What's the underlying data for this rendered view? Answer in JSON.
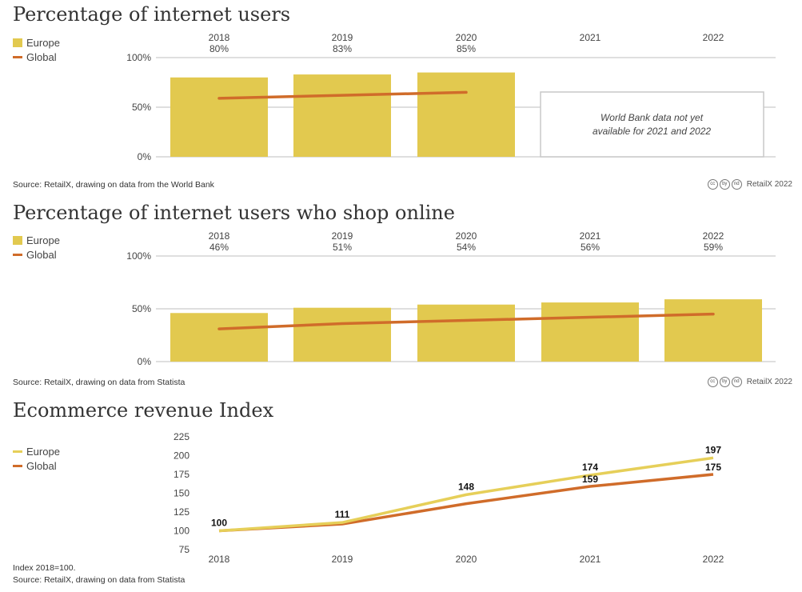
{
  "colors": {
    "europe": "#e2c94f",
    "global": "#d06c2a",
    "europe_line": "#e6cf59",
    "grid": "#cccccc"
  },
  "chart_data": [
    {
      "type": "bar",
      "title": "Percentage of internet users",
      "categories": [
        "2018",
        "2019",
        "2020",
        "2021",
        "2022"
      ],
      "value_labels": [
        "80%",
        "83%",
        "85%",
        "",
        ""
      ],
      "series": [
        {
          "name": "Europe",
          "kind": "bar",
          "values": [
            80,
            83,
            85,
            null,
            null
          ]
        },
        {
          "name": "Global",
          "kind": "line",
          "values": [
            59,
            62,
            65,
            null,
            null
          ]
        }
      ],
      "yticks": [
        "100%",
        "50%",
        "0%"
      ],
      "ylim": [
        0,
        100
      ],
      "annotation": "World Bank data not yet available for 2021 and 2022",
      "source": "Source: RetailX, drawing on data from the World Bank"
    },
    {
      "type": "bar",
      "title": "Percentage of internet users who shop online",
      "categories": [
        "2018",
        "2019",
        "2020",
        "2021",
        "2022"
      ],
      "value_labels": [
        "46%",
        "51%",
        "54%",
        "56%",
        "59%"
      ],
      "series": [
        {
          "name": "Europe",
          "kind": "bar",
          "values": [
            46,
            51,
            54,
            56,
            59
          ]
        },
        {
          "name": "Global",
          "kind": "line",
          "values": [
            31,
            36,
            39,
            42,
            45
          ]
        }
      ],
      "yticks": [
        "100%",
        "50%",
        "0%"
      ],
      "ylim": [
        0,
        100
      ],
      "source": "Source: RetailX, drawing on data from Statista"
    },
    {
      "type": "line",
      "title": "Ecommerce revenue Index",
      "categories": [
        "2018",
        "2019",
        "2020",
        "2021",
        "2022"
      ],
      "series": [
        {
          "name": "Europe",
          "values": [
            100,
            111,
            148,
            174,
            197
          ]
        },
        {
          "name": "Global",
          "values": [
            100,
            109,
            136,
            159,
            175
          ]
        }
      ],
      "point_labels": [
        "100",
        "111",
        "148",
        "174",
        "197"
      ],
      "global_labels": [
        "",
        "",
        "",
        "159",
        "175"
      ],
      "yticks": [
        "225",
        "200",
        "175",
        "150",
        "125",
        "100",
        "75"
      ],
      "ylim": [
        75,
        225
      ],
      "note": "Index 2018=100.",
      "source": "Source: RetailX, drawing on data from Statista"
    }
  ],
  "legend": {
    "europe": "Europe",
    "global": "Global"
  },
  "credit": "RetailX 2022",
  "cc_icons": [
    "cc",
    "by",
    "nd"
  ]
}
